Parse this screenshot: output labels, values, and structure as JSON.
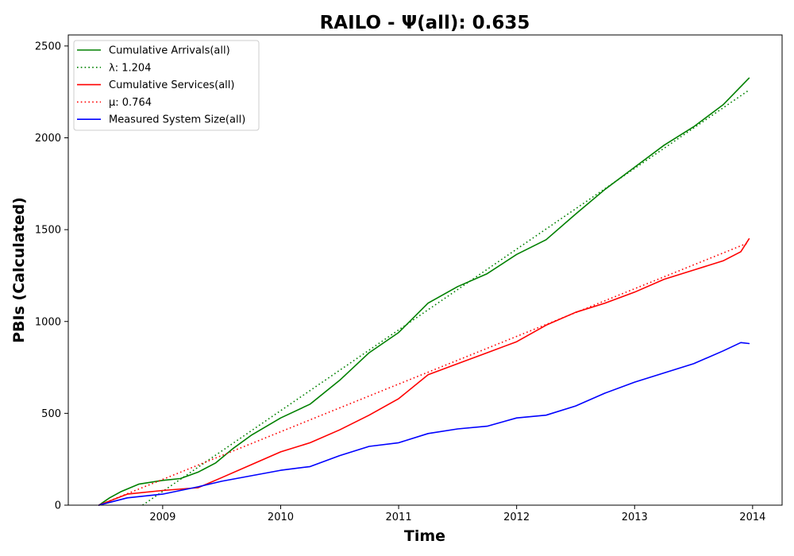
{
  "chart_data": {
    "type": "line",
    "title": "RAILO -  Ψ(all): 0.635",
    "xlabel": "Time",
    "ylabel": "PBIs (Calculated)",
    "xlim": [
      2008.2,
      2014.25
    ],
    "ylim": [
      0,
      2560
    ],
    "x_ticks": [
      2009,
      2010,
      2011,
      2012,
      2013,
      2014
    ],
    "x_tick_labels": [
      "2009",
      "2010",
      "2011",
      "2012",
      "2013",
      "2014"
    ],
    "y_ticks": [
      0,
      500,
      1000,
      1500,
      2000,
      2500
    ],
    "y_tick_labels": [
      "0",
      "500",
      "1000",
      "1500",
      "2000",
      "2500"
    ],
    "grid": false,
    "legend_position": "top-left",
    "series": [
      {
        "name": "Cumulative Arrivals(all)",
        "color": "#008000",
        "style": "solid",
        "x": [
          2008.46,
          2008.55,
          2008.65,
          2008.8,
          2009.0,
          2009.15,
          2009.3,
          2009.45,
          2009.6,
          2009.75,
          2010.0,
          2010.25,
          2010.5,
          2010.75,
          2011.0,
          2011.25,
          2011.5,
          2011.75,
          2012.0,
          2012.25,
          2012.5,
          2012.75,
          2013.0,
          2013.25,
          2013.5,
          2013.75,
          2013.97
        ],
        "y": [
          0,
          40,
          75,
          115,
          135,
          145,
          180,
          230,
          310,
          380,
          475,
          550,
          680,
          830,
          940,
          1100,
          1190,
          1260,
          1365,
          1445,
          1585,
          1720,
          1840,
          1960,
          2060,
          2180,
          2325
        ]
      },
      {
        "name": "λ: 1.204",
        "color": "#008000",
        "style": "dotted",
        "x": [
          2008.83,
          2013.97
        ],
        "y": [
          0,
          2260
        ]
      },
      {
        "name": "Cumulative Services(all)",
        "color": "#ff0000",
        "style": "solid",
        "x": [
          2008.46,
          2008.7,
          2009.0,
          2009.3,
          2009.5,
          2009.75,
          2010.0,
          2010.25,
          2010.5,
          2010.75,
          2011.0,
          2011.25,
          2011.5,
          2011.75,
          2012.0,
          2012.25,
          2012.5,
          2012.75,
          2013.0,
          2013.25,
          2013.5,
          2013.75,
          2013.9,
          2013.97
        ],
        "y": [
          0,
          60,
          80,
          95,
          150,
          220,
          290,
          340,
          410,
          490,
          580,
          710,
          770,
          830,
          890,
          980,
          1050,
          1100,
          1160,
          1230,
          1280,
          1330,
          1380,
          1450
        ]
      },
      {
        "name": "μ: 0.764",
        "color": "#ff0000",
        "style": "dotted",
        "x": [
          2008.46,
          2013.97
        ],
        "y": [
          0,
          1430
        ]
      },
      {
        "name": "Measured System Size(all)",
        "color": "#0000ff",
        "style": "solid",
        "x": [
          2008.46,
          2008.7,
          2009.0,
          2009.3,
          2009.5,
          2009.75,
          2010.0,
          2010.25,
          2010.5,
          2010.75,
          2011.0,
          2011.25,
          2011.5,
          2011.75,
          2012.0,
          2012.25,
          2012.5,
          2012.75,
          2013.0,
          2013.25,
          2013.5,
          2013.75,
          2013.9,
          2013.97
        ],
        "y": [
          0,
          40,
          60,
          100,
          130,
          160,
          190,
          210,
          270,
          320,
          340,
          390,
          415,
          430,
          475,
          490,
          540,
          610,
          670,
          720,
          770,
          840,
          885,
          880
        ]
      }
    ]
  }
}
